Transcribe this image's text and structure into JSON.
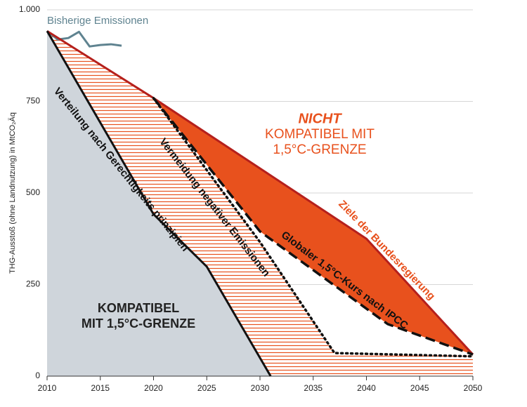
{
  "chart_data": {
    "type": "line",
    "y_label": "THG-Ausstoß (ohne Landnutzung) in MtCO₂Äq",
    "xlim": [
      2010,
      2050
    ],
    "xticks": [
      2010,
      2015,
      2020,
      2025,
      2030,
      2035,
      2040,
      2045,
      2050
    ],
    "ylim": [
      0,
      1000
    ],
    "yticks": [
      0,
      250,
      500,
      750,
      {
        "value": 1000,
        "label": "1.000"
      }
    ],
    "grid": true,
    "series": [
      {
        "name": "Bisherige Emissionen",
        "color": "#5f8390",
        "style": "solid",
        "x": [
          2010,
          2011,
          2012,
          2013,
          2014,
          2015,
          2016,
          2017
        ],
        "values": [
          942,
          919,
          923,
          940,
          900,
          904,
          906,
          902
        ]
      },
      {
        "name": "Ziele der Bundesregierung",
        "color": "#b5201c",
        "style": "solid",
        "x": [
          2010,
          2020,
          2040,
          2050
        ],
        "values": [
          942,
          759,
          375,
          59
        ]
      },
      {
        "name": "Verteilung nach Gerechtigkeits prinzipien",
        "color": "#111111",
        "style": "solid",
        "x": [
          2010,
          2020,
          2025,
          2031
        ],
        "values": [
          942,
          442,
          299,
          0
        ]
      },
      {
        "name": "Vermeidung negativer Emissionen",
        "color": "#111111",
        "style": "dotted",
        "x": [
          2020,
          2030,
          2037,
          2050
        ],
        "values": [
          759,
          366,
          63,
          54
        ]
      },
      {
        "name": "Globaler 1,5°C-Kurs nach IPCC",
        "color": "#111111",
        "style": "dashed",
        "x": [
          2020,
          2030,
          2042,
          2050
        ],
        "values": [
          759,
          395,
          142,
          59
        ]
      }
    ],
    "annotations": [
      "NICHT",
      "KOMPATIBEL MIT",
      "1,5°C-GRENZE",
      "KOMPATIBEL",
      "MIT 1,5°C-GRENZE"
    ]
  }
}
